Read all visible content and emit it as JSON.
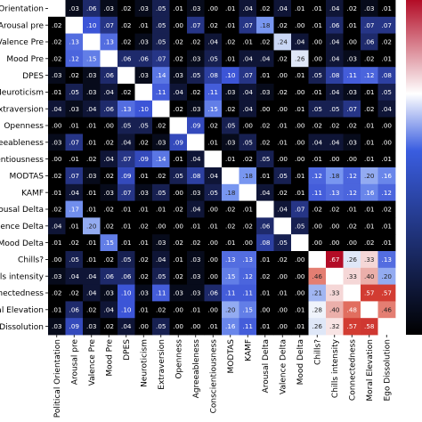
{
  "chart_data": {
    "type": "heatmap",
    "title": "",
    "xlabel": "",
    "ylabel": "",
    "row_labels": [
      "Orientation",
      "Arousal pre",
      "Valence Pre",
      "Mood Pre",
      "DPES",
      "Neuroticism",
      "Extraversion",
      "Openness",
      "reeableness",
      "entiousness",
      "MODTAS",
      "KAMF",
      "rousal Delta",
      "alence Delta",
      "Mood Delta",
      "Chills?",
      "ills intensity",
      "onnectedness",
      "ral Elevation",
      "Dissolution"
    ],
    "col_labels": [
      "Political Orientation",
      "Arousal pre",
      "Valence Pre",
      "Mood Pre",
      "DPES",
      "Neuroticism",
      "Extraversion",
      "Openness",
      "Agreeableness",
      "Conscientiousness",
      "MODTAS",
      "KAMF",
      "Arousal Delta",
      "Valence Delta",
      "Mood Delta",
      "Chills?",
      "Chills intensity",
      "Connectedness",
      "Moral Elevation",
      "Ego Dissolution"
    ],
    "cell_text": [
      [
        "",
        ".03",
        ".06",
        ".03",
        ".02",
        ".03",
        ".05",
        ".01",
        ".03",
        ".00",
        ".01",
        ".04",
        ".02",
        ".04",
        ".01",
        ".01",
        ".04",
        ".02",
        ".03",
        ".01"
      ],
      [
        ".02",
        "",
        ".10",
        ".07",
        ".02",
        ".01",
        ".05",
        ".00",
        ".07",
        ".02",
        ".01",
        ".07",
        ".18",
        ".02",
        ".00",
        ".01",
        ".06",
        ".01",
        ".07",
        ".07"
      ],
      [
        ".02",
        ".13",
        "",
        ".13",
        ".02",
        ".03",
        ".05",
        ".02",
        ".02",
        ".04",
        ".02",
        ".01",
        ".02",
        ".24",
        ".04",
        ".00",
        ".04",
        ".00",
        ".06",
        ".02"
      ],
      [
        ".02",
        ".12",
        ".15",
        "",
        ".06",
        ".06",
        ".07",
        ".02",
        ".03",
        ".05",
        ".01",
        ".04",
        ".04",
        ".02",
        ".26",
        ".00",
        ".04",
        ".03",
        ".02",
        ".01"
      ],
      [
        ".03",
        ".02",
        ".03",
        ".06",
        "",
        ".03",
        ".14",
        ".03",
        ".05",
        ".08",
        ".10",
        ".07",
        ".01",
        ".00",
        ".01",
        ".05",
        ".08",
        ".11",
        ".12",
        ".08"
      ],
      [
        ".01",
        ".05",
        ".03",
        ".04",
        ".02",
        "",
        ".11",
        ".04",
        ".02",
        ".11",
        ".03",
        ".04",
        ".03",
        ".02",
        ".00",
        ".01",
        ".04",
        ".03",
        ".01",
        ".05"
      ],
      [
        ".04",
        ".03",
        ".04",
        ".06",
        ".13",
        ".10",
        "",
        ".02",
        ".03",
        ".15",
        ".02",
        ".04",
        ".00",
        ".00",
        ".01",
        ".05",
        ".05",
        ".07",
        ".02",
        ".04"
      ],
      [
        ".00",
        ".01",
        ".01",
        ".00",
        ".05",
        ".05",
        ".02",
        "",
        ".09",
        ".02",
        ".05",
        ".00",
        ".02",
        ".01",
        ".00",
        ".02",
        ".02",
        ".02",
        ".01",
        ".00"
      ],
      [
        ".03",
        ".07",
        ".01",
        ".02",
        ".04",
        ".02",
        ".03",
        ".09",
        "",
        ".01",
        ".03",
        ".05",
        ".02",
        ".01",
        ".00",
        ".04",
        ".04",
        ".03",
        ".01",
        ".00"
      ],
      [
        ".00",
        ".01",
        ".02",
        ".04",
        ".07",
        ".09",
        ".14",
        ".01",
        ".04",
        "",
        ".01",
        ".02",
        ".05",
        ".00",
        ".00",
        ".01",
        ".00",
        ".00",
        ".01",
        ".01"
      ],
      [
        ".02",
        ".07",
        ".03",
        ".02",
        ".09",
        ".01",
        ".02",
        ".05",
        ".08",
        ".04",
        "",
        ".18",
        ".01",
        ".05",
        ".01",
        ".12",
        ".18",
        ".12",
        ".20",
        ".16"
      ],
      [
        ".01",
        ".04",
        ".01",
        ".03",
        ".07",
        ".03",
        ".05",
        ".00",
        ".03",
        ".05",
        ".18",
        "",
        ".04",
        ".02",
        ".01",
        ".11",
        ".13",
        ".12",
        ".16",
        ".12"
      ],
      [
        ".02",
        ".17",
        ".01",
        ".02",
        ".01",
        ".01",
        ".01",
        ".02",
        ".04",
        ".00",
        ".02",
        ".01",
        "",
        ".04",
        ".07",
        ".02",
        ".02",
        ".01",
        ".01",
        ".02"
      ],
      [
        ".04",
        ".01",
        ".20",
        ".02",
        ".01",
        ".02",
        ".00",
        ".00",
        ".01",
        ".01",
        ".02",
        ".02",
        ".06",
        "",
        ".05",
        ".00",
        ".00",
        ".02",
        ".01",
        ".01"
      ],
      [
        ".01",
        ".02",
        ".01",
        ".15",
        ".01",
        ".01",
        ".03",
        ".02",
        ".02",
        ".00",
        ".01",
        ".00",
        ".08",
        ".05",
        "",
        ".00",
        ".00",
        ".00",
        ".02",
        ".01"
      ],
      [
        ".00",
        ".05",
        ".01",
        ".02",
        ".05",
        ".02",
        ".04",
        ".01",
        ".03",
        ".00",
        ".13",
        ".13",
        ".01",
        ".02",
        ".00",
        "",
        ".67",
        ".26",
        ".33",
        ".13"
      ],
      [
        ".03",
        ".04",
        ".04",
        ".06",
        ".06",
        ".02",
        ".05",
        ".02",
        ".03",
        ".00",
        ".15",
        ".12",
        ".02",
        ".00",
        ".00",
        ".46",
        "",
        ".33",
        ".40",
        ".20"
      ],
      [
        ".02",
        ".02",
        ".04",
        ".03",
        ".10",
        ".03",
        ".11",
        ".03",
        ".03",
        ".06",
        ".11",
        ".11",
        ".01",
        ".01",
        ".00",
        ".21",
        ".33",
        "",
        ".57",
        ".57"
      ],
      [
        ".01",
        ".06",
        ".02",
        ".04",
        ".10",
        ".01",
        ".02",
        ".00",
        ".01",
        ".00",
        ".20",
        ".15",
        ".00",
        ".00",
        ".01",
        ".28",
        ".40",
        ".48",
        "",
        ".46"
      ],
      [
        ".03",
        ".09",
        ".03",
        ".02",
        ".04",
        ".00",
        ".05",
        ".00",
        ".00",
        ".01",
        ".16",
        ".11",
        ".01",
        ".00",
        ".01",
        ".26",
        ".32",
        ".57",
        ".58",
        ""
      ]
    ],
    "colors": {
      "black": "#000000",
      "blue": "#3a5de0",
      "white": "#ffffff",
      "red": "#b30c26"
    }
  }
}
